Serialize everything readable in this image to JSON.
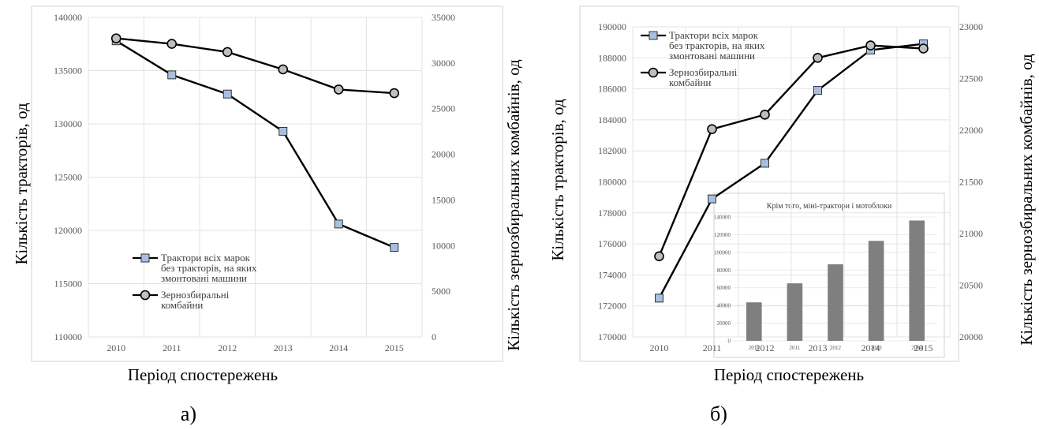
{
  "panels": {
    "left_label": "а)",
    "right_label": "б)"
  },
  "chart_data": [
    {
      "type": "line",
      "panel": "а)",
      "title": "",
      "xlabel": "Період спостережень",
      "ylabel": "Кількість тракторів, од",
      "y2label": "Кількість зернозбиральних комбайнів, од",
      "categories": [
        "2010",
        "2011",
        "2012",
        "2013",
        "2014",
        "2015"
      ],
      "ylim": [
        110000,
        140000
      ],
      "yticks": [
        "110000",
        "115000",
        "120000",
        "125000",
        "130000",
        "135000",
        "140000"
      ],
      "y2lim": [
        0,
        35000
      ],
      "y2ticks": [
        "0",
        "5000",
        "10000",
        "15000",
        "20000",
        "25000",
        "30000",
        "35000"
      ],
      "legend_position": "lower-left",
      "grid": true,
      "series": [
        {
          "name": "Трактори всіх марок без тракторів, на яких змонтовані машини",
          "axis": "left",
          "marker": "square",
          "marker_color": "#a7c0de",
          "values": [
            137800,
            134600,
            132800,
            129300,
            120600,
            118400
          ]
        },
        {
          "name": "Зернозбиральні комбайни",
          "axis": "right",
          "marker": "circle",
          "marker_color": "#bfbfbf",
          "values": [
            32700,
            32100,
            31200,
            29300,
            27100,
            26700
          ]
        }
      ]
    },
    {
      "type": "line",
      "panel": "б)",
      "title": "",
      "xlabel": "Період спостережень",
      "ylabel": "Кількість тракторів, од",
      "y2label": "Кількість зернозбиральних комбайнів, од",
      "categories": [
        "2010",
        "2011",
        "2012",
        "2013",
        "2014",
        "2015"
      ],
      "ylim": [
        170000,
        190000
      ],
      "yticks": [
        "170000",
        "172000",
        "174000",
        "176000",
        "178000",
        "180000",
        "182000",
        "184000",
        "186000",
        "188000",
        "190000"
      ],
      "y2lim": [
        20000,
        23000
      ],
      "y2ticks": [
        "20000",
        "20500",
        "21000",
        "21500",
        "22000",
        "22500",
        "23000"
      ],
      "legend_position": "top-left",
      "grid": true,
      "series": [
        {
          "name": "Трактори всіх марок без тракторів, на яких змонтовані машини",
          "axis": "left",
          "marker": "square",
          "marker_color": "#a7c0de",
          "values": [
            172500,
            178900,
            181200,
            185900,
            188500,
            188900
          ]
        },
        {
          "name": "Зернозбиральні комбайни",
          "axis": "right",
          "marker": "circle",
          "marker_color": "#bfbfbf",
          "values": [
            20780,
            22010,
            22150,
            22700,
            22820,
            22790
          ]
        }
      ]
    },
    {
      "type": "bar",
      "panel": "б) inset",
      "title": "Крім того, міні-трактори і мотоблоки",
      "categories": [
        "2010",
        "2011",
        "2012",
        "2013",
        "2014"
      ],
      "values": [
        43500,
        65000,
        86500,
        113000,
        136000
      ],
      "ylim": [
        0,
        140000
      ],
      "yticks": [
        "0",
        "20000",
        "40000",
        "60000",
        "80000",
        "100000",
        "120000",
        "140000"
      ],
      "bar_color": "#7f7f7f",
      "grid": true
    }
  ]
}
